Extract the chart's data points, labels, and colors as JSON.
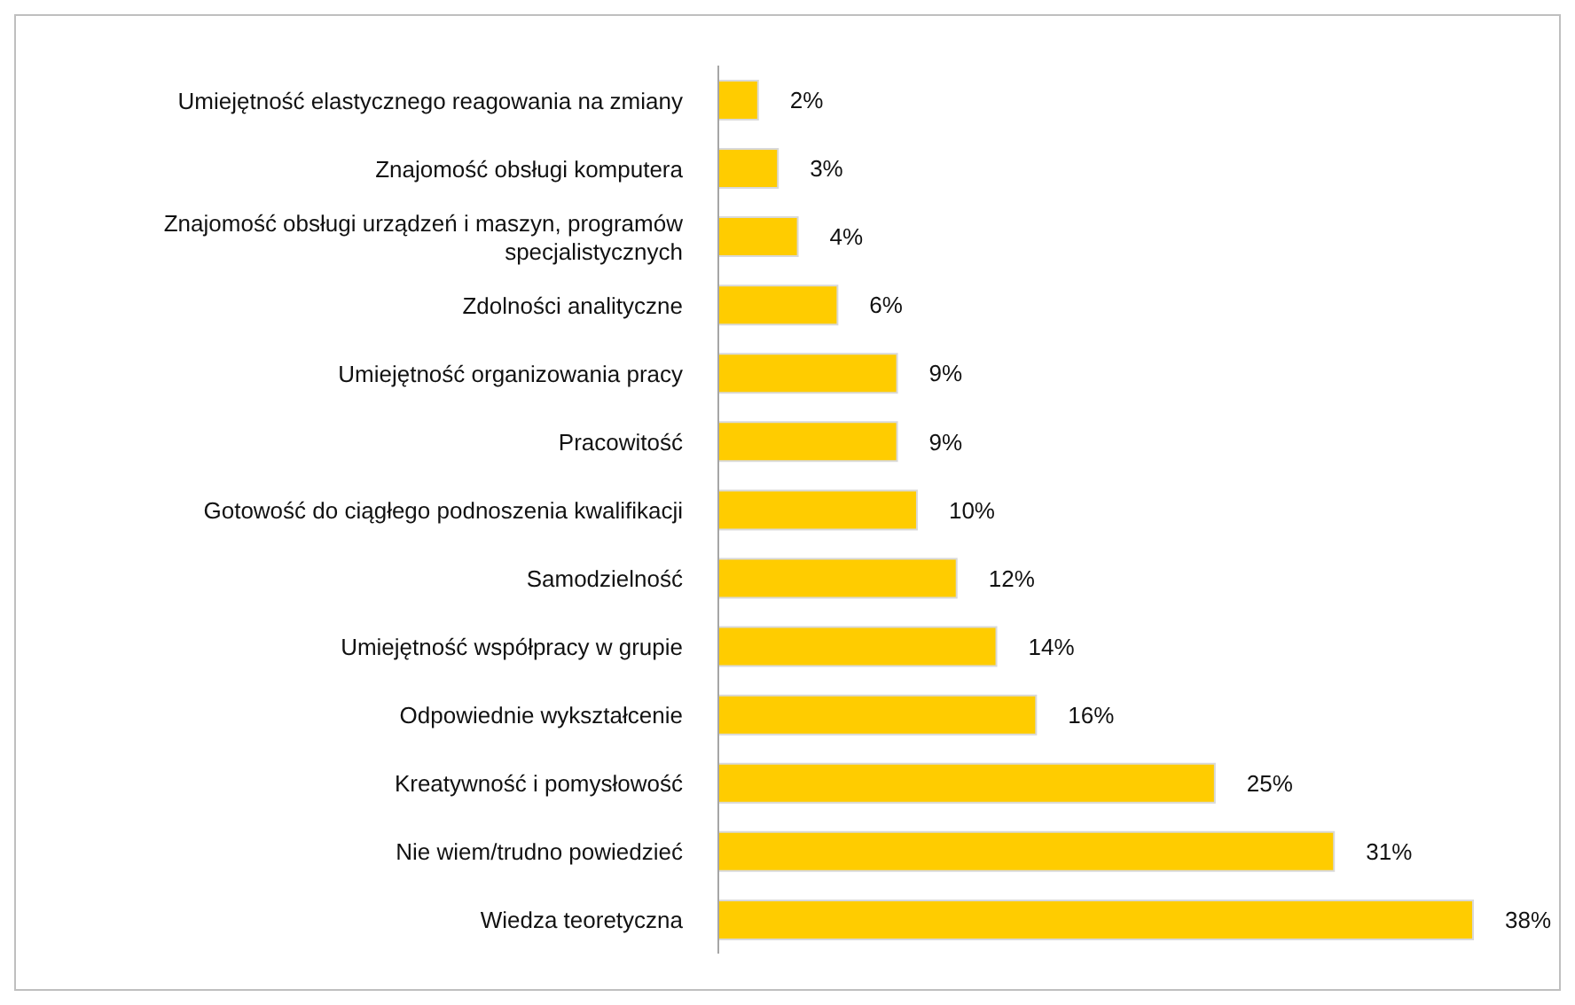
{
  "chart_data": {
    "type": "bar",
    "orientation": "horizontal",
    "categories": [
      "Umiejętność elastycznego reagowania na zmiany",
      "Znajomość obsługi komputera",
      "Znajomość obsługi urządzeń i maszyn, programów specjalistycznych",
      "Zdolności analityczne",
      "Umiejętność organizowania pracy",
      "Pracowitość",
      "Gotowość do ciągłego podnoszenia kwalifikacji",
      "Samodzielność",
      "Umiejętność współpracy w grupie",
      "Odpowiednie wykształcenie",
      "Kreatywność i pomysłowość",
      "Nie wiem/trudno powiedzieć",
      "Wiedza teoretyczna"
    ],
    "values": [
      2,
      3,
      4,
      6,
      9,
      9,
      10,
      12,
      14,
      16,
      25,
      31,
      38
    ],
    "value_labels": [
      "2%",
      "3%",
      "4%",
      "6%",
      "9%",
      "9%",
      "10%",
      "12%",
      "14%",
      "16%",
      "25%",
      "31%",
      "38%"
    ],
    "color": "#ffcc00",
    "tick_labels": "y"
  }
}
